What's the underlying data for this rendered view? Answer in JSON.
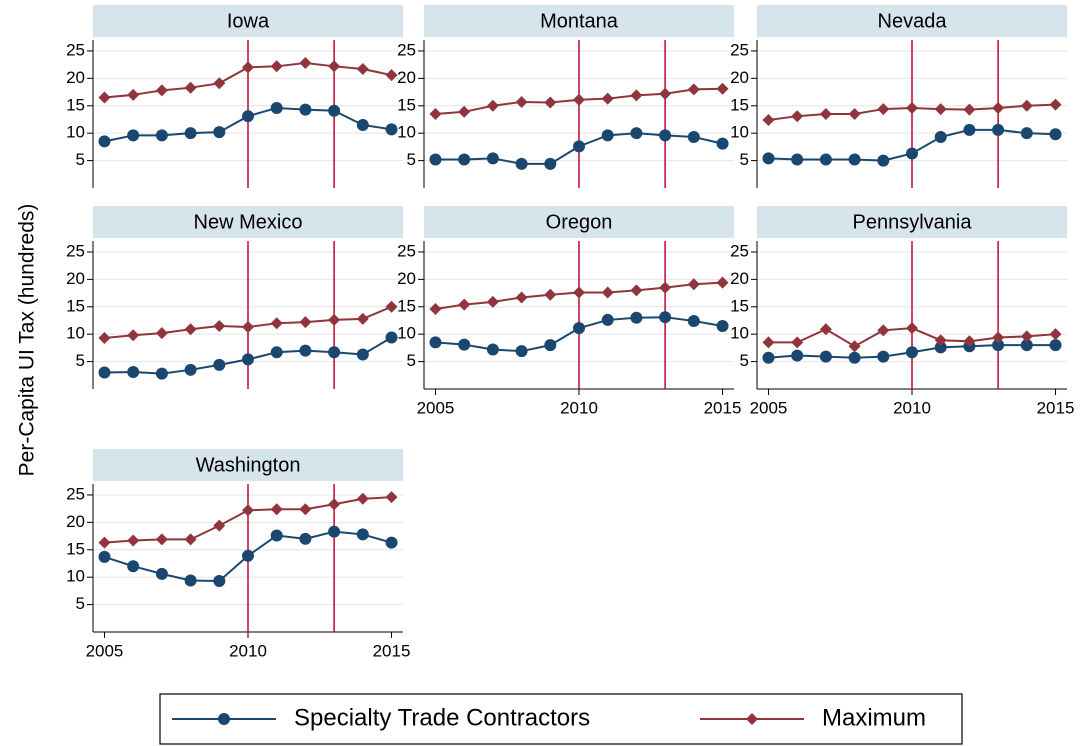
{
  "ylabel": "Per-Capita UI Tax (hundreds)",
  "chart_data": [
    {
      "type": "line",
      "title": "Iowa",
      "x": [
        2005,
        2006,
        2007,
        2008,
        2009,
        2010,
        2011,
        2012,
        2013,
        2014,
        2015
      ],
      "xlim": [
        2004.6,
        2015.4
      ],
      "ylim": [
        0,
        27
      ],
      "yticks": [
        5,
        10,
        15,
        20,
        25
      ],
      "grid": true,
      "vlines": [
        2010,
        2013
      ],
      "vline_color": "#c10534",
      "series": [
        {
          "name": "Specialty Trade Contractors",
          "color": "#1a476f",
          "marker": "circle",
          "values": [
            8.5,
            9.6,
            9.6,
            10,
            10.2,
            13.1,
            14.6,
            14.3,
            14.1,
            11.5,
            10.7
          ]
        },
        {
          "name": "Maximum",
          "color": "#90353b",
          "marker": "diamond",
          "values": [
            16.5,
            17,
            17.8,
            18.3,
            19.1,
            22,
            22.2,
            22.8,
            22.2,
            21.7,
            20.6
          ]
        }
      ]
    },
    {
      "type": "line",
      "title": "Montana",
      "x": [
        2005,
        2006,
        2007,
        2008,
        2009,
        2010,
        2011,
        2012,
        2013,
        2014,
        2015
      ],
      "xlim": [
        2004.6,
        2015.4
      ],
      "ylim": [
        0,
        27
      ],
      "yticks": [
        5,
        10,
        15,
        20,
        25
      ],
      "grid": true,
      "vlines": [
        2010,
        2013
      ],
      "vline_color": "#c10534",
      "series": [
        {
          "name": "Specialty Trade Contractors",
          "color": "#1a476f",
          "marker": "circle",
          "values": [
            5.2,
            5.2,
            5.4,
            4.4,
            4.4,
            7.6,
            9.6,
            10,
            9.6,
            9.3,
            8.1
          ]
        },
        {
          "name": "Maximum",
          "color": "#90353b",
          "marker": "diamond",
          "values": [
            13.5,
            13.9,
            15,
            15.7,
            15.6,
            16.1,
            16.3,
            16.9,
            17.2,
            18,
            18.1
          ]
        }
      ]
    },
    {
      "type": "line",
      "title": "Nevada",
      "x": [
        2005,
        2006,
        2007,
        2008,
        2009,
        2010,
        2011,
        2012,
        2013,
        2014,
        2015
      ],
      "xlim": [
        2004.6,
        2015.4
      ],
      "ylim": [
        0,
        27
      ],
      "yticks": [
        5,
        10,
        15,
        20,
        25
      ],
      "grid": true,
      "vlines": [
        2010,
        2013
      ],
      "vline_color": "#c10534",
      "series": [
        {
          "name": "Specialty Trade Contractors",
          "color": "#1a476f",
          "marker": "circle",
          "values": [
            5.4,
            5.2,
            5.2,
            5.2,
            5,
            6.3,
            9.3,
            10.6,
            10.6,
            10,
            9.8
          ]
        },
        {
          "name": "Maximum",
          "color": "#90353b",
          "marker": "diamond",
          "values": [
            12.4,
            13.1,
            13.5,
            13.5,
            14.4,
            14.6,
            14.4,
            14.3,
            14.6,
            15,
            15.2
          ]
        }
      ]
    },
    {
      "type": "line",
      "title": "New Mexico",
      "x": [
        2005,
        2006,
        2007,
        2008,
        2009,
        2010,
        2011,
        2012,
        2013,
        2014,
        2015
      ],
      "xlim": [
        2004.6,
        2015.4
      ],
      "ylim": [
        0,
        27
      ],
      "yticks": [
        5,
        10,
        15,
        20,
        25
      ],
      "grid": true,
      "vlines": [
        2010,
        2013
      ],
      "vline_color": "#c10534",
      "series": [
        {
          "name": "Specialty Trade Contractors",
          "color": "#1a476f",
          "marker": "circle",
          "values": [
            3,
            3.1,
            2.8,
            3.5,
            4.4,
            5.4,
            6.7,
            7,
            6.7,
            6.3,
            9.4
          ]
        },
        {
          "name": "Maximum",
          "color": "#90353b",
          "marker": "diamond",
          "values": [
            9.3,
            9.8,
            10.2,
            10.9,
            11.5,
            11.3,
            12,
            12.2,
            12.6,
            12.8,
            15
          ]
        }
      ]
    },
    {
      "type": "line",
      "title": "Oregon",
      "x": [
        2005,
        2006,
        2007,
        2008,
        2009,
        2010,
        2011,
        2012,
        2013,
        2014,
        2015
      ],
      "xlim": [
        2004.6,
        2015.4
      ],
      "xticks": [
        2005,
        2010,
        2015
      ],
      "ylim": [
        0,
        27
      ],
      "yticks": [
        5,
        10,
        15,
        20,
        25
      ],
      "grid": true,
      "vlines": [
        2010,
        2013
      ],
      "vline_color": "#c10534",
      "series": [
        {
          "name": "Specialty Trade Contractors",
          "color": "#1a476f",
          "marker": "circle",
          "values": [
            8.5,
            8.1,
            7.2,
            6.9,
            8,
            11.1,
            12.6,
            13,
            13.1,
            12.4,
            11.5
          ]
        },
        {
          "name": "Maximum",
          "color": "#90353b",
          "marker": "diamond",
          "values": [
            14.6,
            15.4,
            15.9,
            16.7,
            17.2,
            17.6,
            17.6,
            18,
            18.5,
            19.1,
            19.4
          ]
        }
      ]
    },
    {
      "type": "line",
      "title": "Pennsylvania",
      "x": [
        2005,
        2006,
        2007,
        2008,
        2009,
        2010,
        2011,
        2012,
        2013,
        2014,
        2015
      ],
      "xlim": [
        2004.6,
        2015.4
      ],
      "xticks": [
        2005,
        2010,
        2015
      ],
      "ylim": [
        0,
        27
      ],
      "yticks": [
        5,
        10,
        15,
        20,
        25
      ],
      "grid": true,
      "vlines": [
        2010,
        2013
      ],
      "vline_color": "#c10534",
      "series": [
        {
          "name": "Specialty Trade Contractors",
          "color": "#1a476f",
          "marker": "circle",
          "values": [
            5.7,
            6.1,
            5.9,
            5.7,
            5.9,
            6.7,
            7.6,
            7.8,
            8,
            8,
            8
          ]
        },
        {
          "name": "Maximum",
          "color": "#90353b",
          "marker": "diamond",
          "values": [
            8.5,
            8.5,
            10.9,
            7.8,
            10.7,
            11.1,
            8.9,
            8.7,
            9.4,
            9.6,
            10
          ]
        }
      ]
    },
    {
      "type": "line",
      "title": "Washington",
      "x": [
        2005,
        2006,
        2007,
        2008,
        2009,
        2010,
        2011,
        2012,
        2013,
        2014,
        2015
      ],
      "xlim": [
        2004.6,
        2015.4
      ],
      "xticks": [
        2005,
        2010,
        2015
      ],
      "ylim": [
        0,
        27
      ],
      "yticks": [
        5,
        10,
        15,
        20,
        25
      ],
      "grid": true,
      "vlines": [
        2010,
        2013
      ],
      "vline_color": "#c10534",
      "series": [
        {
          "name": "Specialty Trade Contractors",
          "color": "#1a476f",
          "marker": "circle",
          "values": [
            13.7,
            12,
            10.6,
            9.4,
            9.3,
            13.9,
            17.6,
            17,
            18.3,
            17.8,
            16.3
          ]
        },
        {
          "name": "Maximum",
          "color": "#90353b",
          "marker": "diamond",
          "values": [
            16.3,
            16.7,
            16.9,
            16.9,
            19.4,
            22.2,
            22.4,
            22.4,
            23.3,
            24.3,
            24.6
          ]
        }
      ]
    }
  ]
}
